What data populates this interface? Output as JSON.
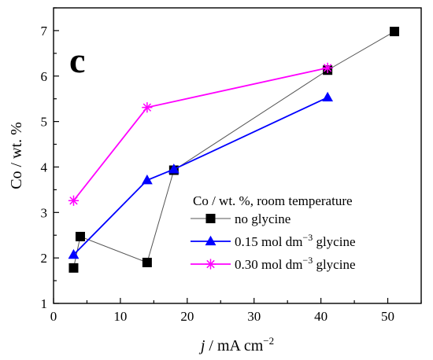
{
  "chart_data": {
    "type": "line",
    "panel_label": "c",
    "xlabel": {
      "italic": "j",
      "text": " / mA cm",
      "sup": "−2"
    },
    "ylabel": "Co / wt. %",
    "xlim": [
      0,
      55
    ],
    "ylim": [
      1,
      7.5
    ],
    "xticks": [
      0,
      10,
      20,
      30,
      40,
      50
    ],
    "yticks": [
      1,
      2,
      3,
      4,
      5,
      6,
      7
    ],
    "legend_title": "Co / wt. %, room temperature",
    "legend_position": "lower-right",
    "series": [
      {
        "name": "no glycine",
        "name_parts": {
          "pre": "no glycine",
          "sup": "",
          "post": ""
        },
        "color": "#000000",
        "line_color": "#555555",
        "marker": "square",
        "points": [
          [
            3,
            1.78
          ],
          [
            4,
            2.47
          ],
          [
            14,
            1.9
          ],
          [
            18,
            3.93
          ],
          [
            41,
            6.13
          ],
          [
            51,
            6.98
          ]
        ]
      },
      {
        "name": "0.15 mol dm−3 glycine",
        "name_parts": {
          "pre": "0.15 mol dm",
          "sup": "−3",
          "post": " glycine"
        },
        "color": "#0000ff",
        "line_color": "#0000ff",
        "marker": "triangle",
        "points": [
          [
            3,
            2.07
          ],
          [
            14,
            3.71
          ],
          [
            18,
            3.95
          ],
          [
            41,
            5.53
          ]
        ]
      },
      {
        "name": "0.30 mol dm−3 glycine",
        "name_parts": {
          "pre": "0.30 mol dm",
          "sup": "−3",
          "post": " glycine"
        },
        "color": "#ff00ff",
        "line_color": "#ff00ff",
        "marker": "star",
        "points": [
          [
            3,
            3.26
          ],
          [
            14,
            5.31
          ],
          [
            41,
            6.18
          ]
        ]
      }
    ]
  }
}
